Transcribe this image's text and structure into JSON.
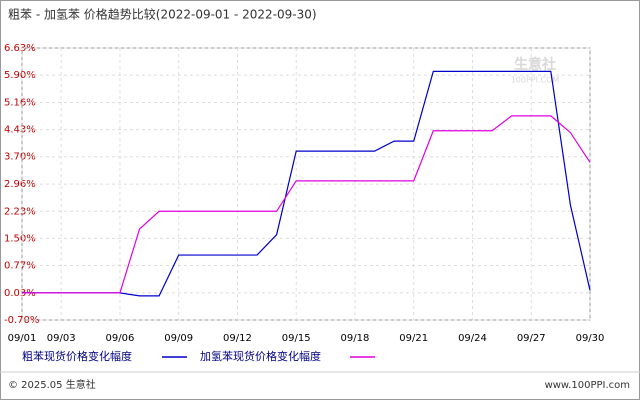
{
  "chart_data": {
    "type": "line",
    "title": "粗苯 - 加氢苯 价格趋势比较(2022-09-01 - 2022-09-30)",
    "categories": [
      "09/01",
      null,
      "09/03",
      null,
      null,
      "09/06",
      null,
      null,
      "09/09",
      null,
      null,
      "09/12",
      null,
      null,
      "09/15",
      null,
      null,
      "09/18",
      null,
      null,
      "09/21",
      null,
      null,
      "09/24",
      null,
      null,
      "09/27",
      null,
      null,
      "09/30"
    ],
    "series": [
      {
        "name": "粗苯现货价格变化幅度",
        "color": "#0000cc",
        "values": [
          0.03,
          0.03,
          0.03,
          0.03,
          0.03,
          0.03,
          -0.05,
          -0.05,
          1.05,
          1.05,
          1.05,
          1.05,
          1.05,
          1.6,
          3.85,
          3.85,
          3.85,
          3.85,
          3.85,
          4.12,
          4.12,
          6.0,
          6.0,
          6.0,
          6.0,
          6.0,
          6.0,
          6.0,
          2.4,
          0.1
        ]
      },
      {
        "name": "加氢苯现货价格变化幅度",
        "color": "#e000e0",
        "values": [
          0.03,
          0.03,
          0.03,
          0.03,
          0.03,
          0.03,
          1.75,
          2.23,
          2.23,
          2.23,
          2.23,
          2.23,
          2.23,
          2.23,
          3.05,
          3.05,
          3.05,
          3.05,
          3.05,
          3.05,
          3.05,
          4.4,
          4.4,
          4.4,
          4.4,
          4.8,
          4.8,
          4.8,
          4.35,
          3.55
        ]
      }
    ],
    "ylim": [
      -0.7,
      6.63
    ],
    "yticks": [
      {
        "value": -0.7,
        "label": "-0.70%"
      },
      {
        "value": 0.03,
        "label": "0.03%"
      },
      {
        "value": 0.77,
        "label": "0.77%"
      },
      {
        "value": 1.5,
        "label": "1.50%"
      },
      {
        "value": 2.23,
        "label": "2.23%"
      },
      {
        "value": 2.96,
        "label": "2.96%"
      },
      {
        "value": 3.7,
        "label": "3.70%"
      },
      {
        "value": 4.43,
        "label": "4.43%"
      },
      {
        "value": 5.16,
        "label": "5.16%"
      },
      {
        "value": 5.9,
        "label": "5.90%"
      },
      {
        "value": 6.63,
        "label": "6.63%"
      }
    ],
    "grid": true,
    "watermark": "生意社",
    "watermark_sub": "100PPI.COM",
    "footer_left": "© 2025.05 生意社",
    "footer_right": "www.100PPI.com"
  }
}
